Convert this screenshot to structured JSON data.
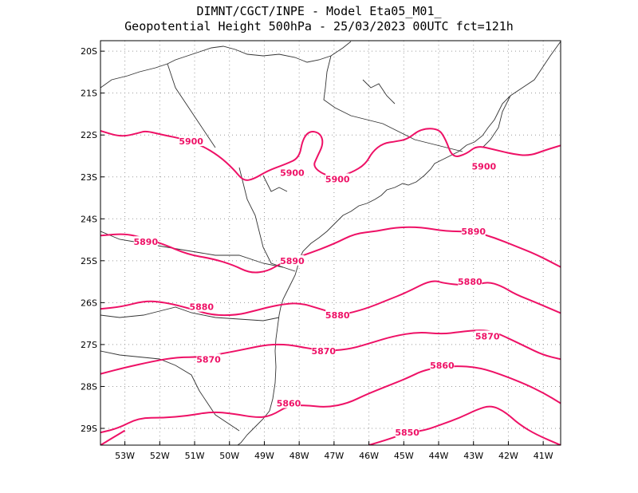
{
  "header": {
    "line1": "DIMNT/CGCT/INPE -  Model Eta05_M01_",
    "line2": "Geopotential Height 500hPa -  25/03/2023 00UTC fct=121h"
  },
  "colors": {
    "contour": "#ee1166",
    "coast": "#333333",
    "grid": "#999999"
  },
  "chart_data": {
    "type": "contour-map",
    "field": "Geopotential Height 500hPa",
    "lon_range": [
      -53.7,
      -40.5
    ],
    "lat_range": [
      -29.4,
      -19.75
    ],
    "x_ticks": [
      "53W",
      "52W",
      "51W",
      "50W",
      "49W",
      "48W",
      "47W",
      "46W",
      "45W",
      "44W",
      "43W",
      "42W",
      "41W"
    ],
    "y_ticks": [
      "20S",
      "21S",
      "22S",
      "23S",
      "24S",
      "25S",
      "26S",
      "27S",
      "28S",
      "29S"
    ],
    "grid": "dotted, every 1 degree",
    "contours": [
      {
        "value": "5900",
        "labels": [
          [
            -51.1,
            -22.15
          ],
          [
            -48.2,
            -22.9
          ],
          [
            -46.9,
            -23.05
          ],
          [
            -42.7,
            -22.75
          ]
        ],
        "path": [
          [
            -53.7,
            -21.9
          ],
          [
            -53.1,
            -22.05
          ],
          [
            -52.6,
            -21.95
          ],
          [
            -52.4,
            -21.9
          ],
          [
            -51.9,
            -22.0
          ],
          [
            -51.3,
            -22.1
          ],
          [
            -50.8,
            -22.25
          ],
          [
            -50.3,
            -22.5
          ],
          [
            -49.9,
            -22.8
          ],
          [
            -49.6,
            -23.1
          ],
          [
            -49.3,
            -23.05
          ],
          [
            -48.9,
            -22.85
          ],
          [
            -48.4,
            -22.7
          ],
          [
            -48.0,
            -22.55
          ],
          [
            -47.9,
            -22.1
          ],
          [
            -47.7,
            -21.9
          ],
          [
            -47.4,
            -21.95
          ],
          [
            -47.3,
            -22.2
          ],
          [
            -47.5,
            -22.55
          ],
          [
            -47.6,
            -22.75
          ],
          [
            -47.3,
            -22.95
          ],
          [
            -46.9,
            -23.0
          ],
          [
            -46.5,
            -22.9
          ],
          [
            -46.1,
            -22.7
          ],
          [
            -45.9,
            -22.4
          ],
          [
            -45.6,
            -22.2
          ],
          [
            -45.2,
            -22.15
          ],
          [
            -44.9,
            -22.1
          ],
          [
            -44.5,
            -21.85
          ],
          [
            -44.0,
            -21.85
          ],
          [
            -43.8,
            -22.1
          ],
          [
            -43.6,
            -22.55
          ],
          [
            -43.2,
            -22.45
          ],
          [
            -42.9,
            -22.25
          ],
          [
            -42.4,
            -22.35
          ],
          [
            -41.9,
            -22.45
          ],
          [
            -41.4,
            -22.5
          ],
          [
            -40.9,
            -22.35
          ],
          [
            -40.5,
            -22.25
          ]
        ]
      },
      {
        "value": "5890",
        "labels": [
          [
            -52.4,
            -24.55
          ],
          [
            -48.2,
            -25.0
          ],
          [
            -43.0,
            -24.3
          ]
        ],
        "path": [
          [
            -53.7,
            -24.4
          ],
          [
            -53.0,
            -24.35
          ],
          [
            -52.5,
            -24.45
          ],
          [
            -51.9,
            -24.6
          ],
          [
            -51.2,
            -24.85
          ],
          [
            -50.5,
            -24.95
          ],
          [
            -49.9,
            -25.1
          ],
          [
            -49.4,
            -25.3
          ],
          [
            -48.9,
            -25.25
          ],
          [
            -48.5,
            -25.05
          ],
          [
            -47.8,
            -24.85
          ],
          [
            -47.0,
            -24.6
          ],
          [
            -46.4,
            -24.35
          ],
          [
            -45.8,
            -24.3
          ],
          [
            -45.2,
            -24.2
          ],
          [
            -44.5,
            -24.2
          ],
          [
            -43.8,
            -24.3
          ],
          [
            -43.0,
            -24.3
          ],
          [
            -42.4,
            -24.45
          ],
          [
            -41.8,
            -24.65
          ],
          [
            -41.2,
            -24.85
          ],
          [
            -40.5,
            -25.15
          ]
        ]
      },
      {
        "value": "5880",
        "labels": [
          [
            -50.8,
            -26.1
          ],
          [
            -46.9,
            -26.3
          ],
          [
            -43.1,
            -25.5
          ]
        ],
        "path": [
          [
            -53.7,
            -26.15
          ],
          [
            -53.1,
            -26.1
          ],
          [
            -52.4,
            -25.95
          ],
          [
            -51.8,
            -26.0
          ],
          [
            -51.1,
            -26.15
          ],
          [
            -50.5,
            -26.3
          ],
          [
            -49.8,
            -26.3
          ],
          [
            -49.3,
            -26.2
          ],
          [
            -48.6,
            -26.05
          ],
          [
            -48.0,
            -26.0
          ],
          [
            -47.4,
            -26.15
          ],
          [
            -46.8,
            -26.3
          ],
          [
            -46.1,
            -26.15
          ],
          [
            -45.5,
            -25.95
          ],
          [
            -44.9,
            -25.75
          ],
          [
            -44.2,
            -25.45
          ],
          [
            -43.8,
            -25.55
          ],
          [
            -43.0,
            -25.6
          ],
          [
            -42.6,
            -25.5
          ],
          [
            -42.2,
            -25.6
          ],
          [
            -41.8,
            -25.8
          ],
          [
            -41.2,
            -26.0
          ],
          [
            -40.5,
            -26.25
          ]
        ]
      },
      {
        "value": "5870",
        "labels": [
          [
            -50.6,
            -27.35
          ],
          [
            -47.3,
            -27.15
          ],
          [
            -42.6,
            -26.8
          ]
        ],
        "path": [
          [
            -53.7,
            -27.7
          ],
          [
            -53.0,
            -27.55
          ],
          [
            -52.2,
            -27.4
          ],
          [
            -51.5,
            -27.3
          ],
          [
            -50.8,
            -27.3
          ],
          [
            -50.1,
            -27.2
          ],
          [
            -49.5,
            -27.1
          ],
          [
            -48.9,
            -27.0
          ],
          [
            -48.3,
            -27.0
          ],
          [
            -47.7,
            -27.1
          ],
          [
            -47.1,
            -27.15
          ],
          [
            -46.5,
            -27.1
          ],
          [
            -45.9,
            -26.95
          ],
          [
            -45.3,
            -26.8
          ],
          [
            -44.6,
            -26.7
          ],
          [
            -43.9,
            -26.75
          ],
          [
            -43.4,
            -26.7
          ],
          [
            -42.8,
            -26.65
          ],
          [
            -42.4,
            -26.7
          ],
          [
            -42.0,
            -26.85
          ],
          [
            -41.5,
            -27.05
          ],
          [
            -41.0,
            -27.25
          ],
          [
            -40.5,
            -27.35
          ]
        ]
      },
      {
        "value": "5860",
        "labels": [
          [
            -48.3,
            -28.4
          ],
          [
            -43.9,
            -27.5
          ]
        ],
        "path": [
          [
            -53.7,
            -29.1
          ],
          [
            -53.2,
            -29.0
          ],
          [
            -52.6,
            -28.75
          ],
          [
            -51.9,
            -28.75
          ],
          [
            -51.2,
            -28.7
          ],
          [
            -50.5,
            -28.6
          ],
          [
            -49.9,
            -28.65
          ],
          [
            -49.2,
            -28.75
          ],
          [
            -48.8,
            -28.7
          ],
          [
            -48.3,
            -28.45
          ],
          [
            -47.8,
            -28.45
          ],
          [
            -47.2,
            -28.5
          ],
          [
            -46.6,
            -28.4
          ],
          [
            -46.1,
            -28.2
          ],
          [
            -45.5,
            -28.0
          ],
          [
            -44.9,
            -27.8
          ],
          [
            -44.4,
            -27.6
          ],
          [
            -43.6,
            -27.5
          ],
          [
            -42.8,
            -27.55
          ],
          [
            -42.1,
            -27.75
          ],
          [
            -41.5,
            -27.95
          ],
          [
            -41.0,
            -28.15
          ],
          [
            -40.5,
            -28.4
          ]
        ]
      },
      {
        "value": "5850",
        "labels": [
          [
            -44.9,
            -29.1
          ]
        ],
        "path": [
          [
            -53.7,
            -29.4
          ],
          [
            -53.4,
            -29.25
          ],
          [
            -53.0,
            -29.05
          ]
        ]
      },
      {
        "value": "5850b",
        "labels": [],
        "path": [
          [
            -46.0,
            -29.4
          ],
          [
            -45.4,
            -29.25
          ],
          [
            -44.9,
            -29.1
          ],
          [
            -44.4,
            -29.05
          ],
          [
            -43.9,
            -28.9
          ],
          [
            -43.4,
            -28.75
          ],
          [
            -42.9,
            -28.55
          ],
          [
            -42.5,
            -28.45
          ],
          [
            -42.1,
            -28.6
          ],
          [
            -41.7,
            -28.9
          ],
          [
            -41.2,
            -29.15
          ],
          [
            -40.5,
            -29.4
          ]
        ]
      }
    ]
  }
}
